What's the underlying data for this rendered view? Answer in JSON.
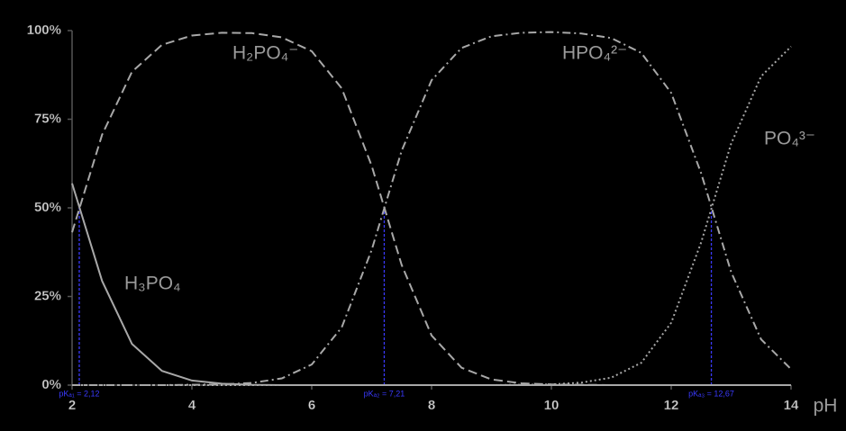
{
  "chart_data": {
    "type": "line",
    "x": [
      2,
      2.5,
      3,
      3.5,
      4,
      4.5,
      5,
      5.5,
      6,
      6.5,
      7,
      7.5,
      8,
      8.5,
      9,
      9.5,
      10,
      10.5,
      11,
      11.5,
      12,
      12.5,
      13,
      13.5,
      14
    ],
    "series": [
      {
        "name": "H₃PO₄",
        "color": "#a8a8a8",
        "values": [
          56.9,
          29.4,
          11.6,
          4.0,
          1.3,
          0.4,
          0.1,
          0,
          0,
          0,
          0,
          0,
          0,
          0,
          0,
          0,
          0,
          0,
          0,
          0,
          0,
          0,
          0,
          0,
          0
        ]
      },
      {
        "name": "H₂PO₄⁻",
        "color": "#a8a8a8",
        "values": [
          43.1,
          70.6,
          88.4,
          96.0,
          98.6,
          99.4,
          99.3,
          98.1,
          94.2,
          83.7,
          61.9,
          33.9,
          14.0,
          4.9,
          1.6,
          0.5,
          0.2,
          0.1,
          0,
          0,
          0,
          0,
          0,
          0,
          0
        ]
      },
      {
        "name": "HPO₄²⁻",
        "color": "#a8a8a8",
        "values": [
          0,
          0,
          0,
          0,
          0.1,
          0.2,
          0.6,
          1.9,
          5.8,
          16.3,
          38.1,
          66.1,
          86.0,
          95.1,
          98.4,
          99.4,
          99.6,
          99.2,
          97.9,
          93.7,
          82.4,
          59.7,
          31.9,
          12.9,
          4.5
        ]
      },
      {
        "name": "PO₄³⁻",
        "color": "#a8a8a8",
        "values": [
          0,
          0,
          0,
          0,
          0,
          0,
          0,
          0,
          0,
          0,
          0,
          0,
          0,
          0,
          0,
          0.1,
          0.2,
          0.7,
          2.1,
          6.3,
          17.6,
          40.3,
          68.1,
          87.1,
          95.5
        ]
      }
    ],
    "pka": [
      {
        "value": 2.12,
        "label": "pKₐ₁ = 2,12"
      },
      {
        "value": 7.21,
        "label": "pKₐ₂ = 7,21"
      },
      {
        "value": 12.67,
        "label": "pKₐ₃ = 12,67"
      }
    ],
    "pka_color": "#3a3aff",
    "x_label": "pH",
    "xlim": [
      2,
      14
    ],
    "xticks": [
      2,
      4,
      6,
      8,
      10,
      12,
      14
    ],
    "ylim": [
      0,
      100
    ],
    "yticks": [
      {
        "value": 0,
        "label": "0%"
      },
      {
        "value": 25,
        "label": "25%"
      },
      {
        "value": 50,
        "label": "50%"
      },
      {
        "value": 75,
        "label": "75%"
      },
      {
        "value": 100,
        "label": "100%"
      }
    ]
  }
}
